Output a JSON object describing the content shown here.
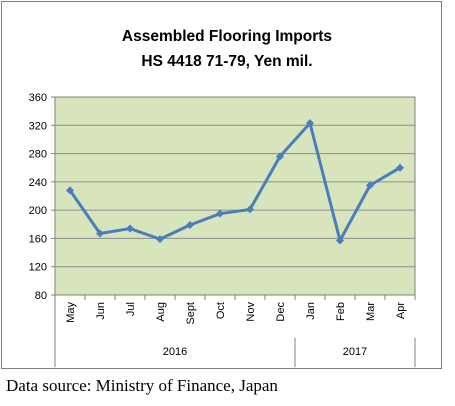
{
  "chart_data": {
    "type": "line",
    "title": "Assembled Flooring Imports",
    "subtitle": "HS 4418 71-79, Yen mil.",
    "xlabel": "",
    "ylabel": "",
    "categories": [
      "May",
      "Jun",
      "Jul",
      "Aug",
      "Sept",
      "Oct",
      "Nov",
      "Dec",
      "Jan",
      "Feb",
      "Mar",
      "Apr"
    ],
    "year_groups": [
      {
        "label": "2016",
        "months": 8
      },
      {
        "label": "2017",
        "months": 4
      }
    ],
    "series": [
      {
        "values": [
          228,
          167,
          174,
          159,
          179,
          195,
          201,
          276,
          323,
          157,
          235,
          260
        ]
      }
    ],
    "ylim": [
      80,
      360
    ],
    "yticks": [
      80,
      120,
      160,
      200,
      240,
      280,
      320,
      360
    ],
    "grid": true,
    "legend": "none",
    "colors": {
      "line": "#4a7ebb",
      "plot_background": "#d8e4bc",
      "chart_background": "#ffffff",
      "frame": "#808080"
    }
  },
  "source": "Data source: Ministry of Finance, Japan"
}
